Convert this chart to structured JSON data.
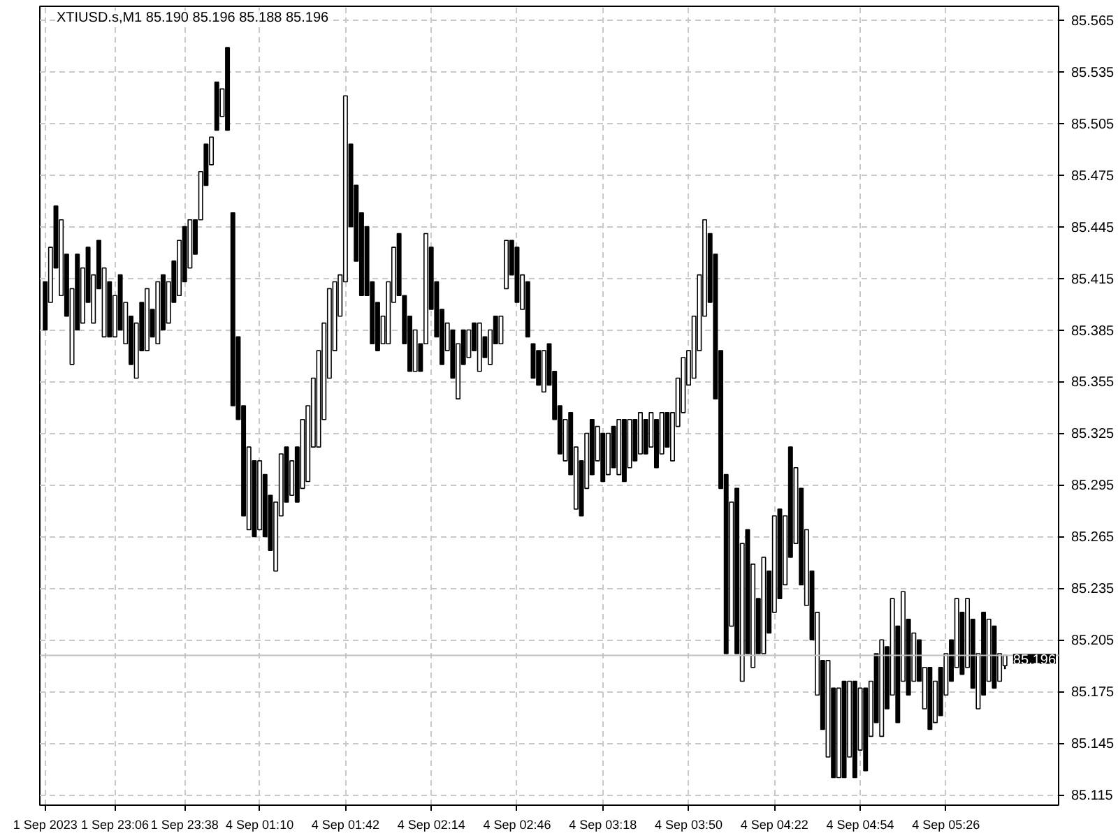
{
  "chart_data": {
    "type": "candlestick",
    "title": "XTIUSD.s,M1  85.190 85.196 85.188 85.196",
    "categories": [
      "1 Sep 2023",
      null,
      null,
      null,
      null,
      null,
      null,
      null,
      null,
      null,
      null,
      null,
      null,
      "1 Sep 23:06",
      null,
      null,
      null,
      null,
      null,
      null,
      null,
      null,
      null,
      null,
      null,
      null,
      "1 Sep 23:38",
      null,
      null,
      null,
      null,
      null,
      null,
      null,
      null,
      null,
      null,
      null,
      null,
      null,
      "4 Sep 01:10",
      null,
      null,
      null,
      null,
      null,
      null,
      null,
      null,
      null,
      null,
      null,
      null,
      null,
      null,
      null,
      "4 Sep 01:42",
      null,
      null,
      null,
      null,
      null,
      null,
      null,
      null,
      null,
      null,
      null,
      null,
      null,
      null,
      null,
      "4 Sep 02:14",
      null,
      null,
      null,
      null,
      null,
      null,
      null,
      null,
      null,
      null,
      null,
      null,
      null,
      null,
      null,
      "4 Sep 02:46",
      null,
      null,
      null,
      null,
      null,
      null,
      null,
      null,
      null,
      null,
      null,
      null,
      null,
      null,
      null,
      "4 Sep 03:18",
      null,
      null,
      null,
      null,
      null,
      null,
      null,
      null,
      null,
      null,
      null,
      null,
      null,
      null,
      null,
      "4 Sep 03:50",
      null,
      null,
      null,
      null,
      null,
      null,
      null,
      null,
      null,
      null,
      null,
      null,
      null,
      null,
      null,
      "4 Sep 04:22",
      null,
      null,
      null,
      null,
      null,
      null,
      null,
      null,
      null,
      null,
      null,
      null,
      null,
      null,
      null,
      "4 Sep 04:54",
      null,
      null,
      null,
      null,
      null,
      null,
      null,
      null,
      null,
      null,
      null,
      null,
      null,
      null,
      null,
      "4 Sep 05:26",
      null,
      null,
      null,
      null,
      null,
      null,
      null,
      null,
      null,
      null,
      null
    ],
    "ohlc": [
      [
        85.413,
        85.413,
        85.385,
        85.385
      ],
      [
        85.401,
        85.433,
        85.401,
        85.433
      ],
      [
        85.457,
        85.457,
        85.421,
        85.421
      ],
      [
        85.405,
        85.449,
        85.405,
        85.449
      ],
      [
        85.429,
        85.429,
        85.393,
        85.393
      ],
      [
        85.365,
        85.409,
        85.365,
        85.409
      ],
      [
        85.429,
        85.429,
        85.385,
        85.385
      ],
      [
        85.389,
        85.421,
        85.389,
        85.421
      ],
      [
        85.433,
        85.433,
        85.401,
        85.401
      ],
      [
        85.389,
        85.417,
        85.389,
        85.417
      ],
      [
        85.437,
        85.437,
        85.409,
        85.409
      ],
      [
        85.381,
        85.421,
        85.381,
        85.421
      ],
      [
        85.413,
        85.413,
        85.381,
        85.381
      ],
      [
        85.381,
        85.405,
        85.381,
        85.405
      ],
      [
        85.417,
        85.417,
        85.385,
        85.385
      ],
      [
        85.377,
        85.401,
        85.377,
        85.401
      ],
      [
        85.393,
        85.393,
        85.365,
        85.365
      ],
      [
        85.357,
        85.389,
        85.357,
        85.389
      ],
      [
        85.401,
        85.401,
        85.373,
        85.373
      ],
      [
        85.373,
        85.409,
        85.373,
        85.409
      ],
      [
        85.397,
        85.397,
        85.381,
        85.381
      ],
      [
        85.377,
        85.413,
        85.377,
        85.413
      ],
      [
        85.417,
        85.417,
        85.385,
        85.385
      ],
      [
        85.389,
        85.413,
        85.389,
        85.413
      ],
      [
        85.425,
        85.425,
        85.401,
        85.401
      ],
      [
        85.405,
        85.437,
        85.405,
        85.437
      ],
      [
        85.445,
        85.445,
        85.413,
        85.413
      ],
      [
        85.421,
        85.449,
        85.421,
        85.449
      ],
      [
        85.449,
        85.449,
        85.429,
        85.429
      ],
      [
        85.449,
        85.477,
        85.449,
        85.477
      ],
      [
        85.493,
        85.493,
        85.469,
        85.469
      ],
      [
        85.481,
        85.497,
        85.481,
        85.497
      ],
      [
        85.529,
        85.529,
        85.501,
        85.501
      ],
      [
        85.509,
        85.525,
        85.509,
        85.525
      ],
      [
        85.549,
        85.549,
        85.501,
        85.501
      ],
      [
        85.453,
        85.453,
        85.341,
        85.341
      ],
      [
        85.381,
        85.381,
        85.333,
        85.333
      ],
      [
        85.341,
        85.341,
        85.277,
        85.277
      ],
      [
        85.269,
        85.317,
        85.269,
        85.317
      ],
      [
        85.309,
        85.309,
        85.265,
        85.265
      ],
      [
        85.269,
        85.309,
        85.269,
        85.309
      ],
      [
        85.301,
        85.301,
        85.265,
        85.265
      ],
      [
        85.289,
        85.289,
        85.257,
        85.257
      ],
      [
        85.245,
        85.285,
        85.245,
        85.285
      ],
      [
        85.277,
        85.313,
        85.277,
        85.313
      ],
      [
        85.317,
        85.317,
        85.285,
        85.285
      ],
      [
        85.289,
        85.309,
        85.289,
        85.309
      ],
      [
        85.317,
        85.317,
        85.285,
        85.285
      ],
      [
        85.293,
        85.333,
        85.293,
        85.333
      ],
      [
        85.297,
        85.341,
        85.297,
        85.341
      ],
      [
        85.317,
        85.357,
        85.317,
        85.357
      ],
      [
        85.317,
        85.373,
        85.317,
        85.373
      ],
      [
        85.333,
        85.389,
        85.333,
        85.389
      ],
      [
        85.357,
        85.409,
        85.357,
        85.409
      ],
      [
        85.373,
        85.413,
        85.373,
        85.413
      ],
      [
        85.393,
        85.417,
        85.393,
        85.417
      ],
      [
        85.413,
        85.521,
        85.413,
        85.521
      ],
      [
        85.493,
        85.493,
        85.445,
        85.445
      ],
      [
        85.469,
        85.469,
        85.425,
        85.425
      ],
      [
        85.453,
        85.453,
        85.405,
        85.405
      ],
      [
        85.445,
        85.445,
        85.405,
        85.405
      ],
      [
        85.413,
        85.413,
        85.377,
        85.377
      ],
      [
        85.401,
        85.401,
        85.373,
        85.373
      ],
      [
        85.377,
        85.393,
        85.377,
        85.393
      ],
      [
        85.377,
        85.413,
        85.377,
        85.413
      ],
      [
        85.401,
        85.433,
        85.401,
        85.433
      ],
      [
        85.441,
        85.441,
        85.405,
        85.405
      ],
      [
        85.405,
        85.405,
        85.377,
        85.377
      ],
      [
        85.393,
        85.393,
        85.361,
        85.361
      ],
      [
        85.361,
        85.385,
        85.361,
        85.385
      ],
      [
        85.377,
        85.377,
        85.361,
        85.361
      ],
      [
        85.377,
        85.441,
        85.377,
        85.441
      ],
      [
        85.433,
        85.433,
        85.397,
        85.397
      ],
      [
        85.413,
        85.413,
        85.381,
        85.381
      ],
      [
        85.397,
        85.397,
        85.365,
        85.365
      ],
      [
        85.373,
        85.389,
        85.373,
        85.389
      ],
      [
        85.385,
        85.385,
        85.357,
        85.357
      ],
      [
        85.345,
        85.377,
        85.345,
        85.377
      ],
      [
        85.385,
        85.385,
        85.365,
        85.365
      ],
      [
        85.369,
        85.385,
        85.369,
        85.385
      ],
      [
        85.389,
        85.389,
        85.373,
        85.373
      ],
      [
        85.361,
        85.389,
        85.361,
        85.389
      ],
      [
        85.381,
        85.381,
        85.369,
        85.369
      ],
      [
        85.365,
        85.385,
        85.365,
        85.385
      ],
      [
        85.393,
        85.393,
        85.377,
        85.377
      ],
      [
        85.377,
        85.393,
        85.377,
        85.393
      ],
      [
        85.409,
        85.437,
        85.409,
        85.437
      ],
      [
        85.437,
        85.437,
        85.417,
        85.417
      ],
      [
        85.433,
        85.433,
        85.401,
        85.401
      ],
      [
        85.397,
        85.417,
        85.397,
        85.417
      ],
      [
        85.413,
        85.413,
        85.381,
        85.381
      ],
      [
        85.377,
        85.377,
        85.357,
        85.357
      ],
      [
        85.373,
        85.373,
        85.353,
        85.353
      ],
      [
        85.349,
        85.373,
        85.349,
        85.373
      ],
      [
        85.377,
        85.377,
        85.353,
        85.353
      ],
      [
        85.361,
        85.361,
        85.333,
        85.333
      ],
      [
        85.341,
        85.341,
        85.313,
        85.313
      ],
      [
        85.309,
        85.333,
        85.309,
        85.333
      ],
      [
        85.337,
        85.337,
        85.301,
        85.301
      ],
      [
        85.281,
        85.317,
        85.281,
        85.317
      ],
      [
        85.309,
        85.309,
        85.277,
        85.277
      ],
      [
        85.293,
        85.325,
        85.293,
        85.325
      ],
      [
        85.333,
        85.333,
        85.301,
        85.301
      ],
      [
        85.309,
        85.329,
        85.309,
        85.329
      ],
      [
        85.325,
        85.325,
        85.297,
        85.297
      ],
      [
        85.301,
        85.325,
        85.301,
        85.325
      ],
      [
        85.329,
        85.329,
        85.305,
        85.305
      ],
      [
        85.301,
        85.333,
        85.301,
        85.333
      ],
      [
        85.333,
        85.333,
        85.297,
        85.297
      ],
      [
        85.305,
        85.333,
        85.305,
        85.333
      ],
      [
        85.333,
        85.333,
        85.309,
        85.309
      ],
      [
        85.313,
        85.337,
        85.313,
        85.337
      ],
      [
        85.333,
        85.333,
        85.313,
        85.313
      ],
      [
        85.317,
        85.337,
        85.317,
        85.337
      ],
      [
        85.333,
        85.333,
        85.305,
        85.305
      ],
      [
        85.313,
        85.337,
        85.313,
        85.337
      ],
      [
        85.337,
        85.337,
        85.317,
        85.317
      ],
      [
        85.309,
        85.337,
        85.309,
        85.337
      ],
      [
        85.329,
        85.357,
        85.329,
        85.357
      ],
      [
        85.337,
        85.369,
        85.337,
        85.369
      ],
      [
        85.353,
        85.373,
        85.353,
        85.373
      ],
      [
        85.357,
        85.393,
        85.357,
        85.393
      ],
      [
        85.373,
        85.417,
        85.373,
        85.417
      ],
      [
        85.393,
        85.449,
        85.393,
        85.449
      ],
      [
        85.441,
        85.441,
        85.401,
        85.401
      ],
      [
        85.429,
        85.429,
        85.345,
        85.345
      ],
      [
        85.373,
        85.373,
        85.293,
        85.293
      ],
      [
        85.301,
        85.301,
        85.197,
        85.197
      ],
      [
        85.213,
        85.285,
        85.213,
        85.285
      ],
      [
        85.293,
        85.293,
        85.197,
        85.197
      ],
      [
        85.181,
        85.261,
        85.181,
        85.261
      ],
      [
        85.269,
        85.269,
        85.197,
        85.197
      ],
      [
        85.189,
        85.249,
        85.189,
        85.249
      ],
      [
        85.229,
        85.229,
        85.197,
        85.197
      ],
      [
        85.197,
        85.253,
        85.197,
        85.253
      ],
      [
        85.245,
        85.245,
        85.209,
        85.209
      ],
      [
        85.221,
        85.277,
        85.221,
        85.277
      ],
      [
        85.281,
        85.281,
        85.229,
        85.229
      ],
      [
        85.237,
        85.277,
        85.237,
        85.277
      ],
      [
        85.317,
        85.317,
        85.253,
        85.253
      ],
      [
        85.261,
        85.305,
        85.261,
        85.305
      ],
      [
        85.293,
        85.293,
        85.237,
        85.237
      ],
      [
        85.225,
        85.269,
        85.225,
        85.269
      ],
      [
        85.245,
        85.245,
        85.205,
        85.205
      ],
      [
        85.173,
        85.221,
        85.173,
        85.221
      ],
      [
        85.193,
        85.193,
        85.153,
        85.153
      ],
      [
        85.137,
        85.193,
        85.137,
        85.193
      ],
      [
        85.177,
        85.177,
        85.125,
        85.125
      ],
      [
        85.125,
        85.177,
        85.125,
        85.177
      ],
      [
        85.181,
        85.181,
        85.125,
        85.125
      ],
      [
        85.137,
        85.181,
        85.137,
        85.181
      ],
      [
        85.181,
        85.181,
        85.125,
        85.125
      ],
      [
        85.141,
        85.177,
        85.141,
        85.177
      ],
      [
        85.177,
        85.177,
        85.129,
        85.129
      ],
      [
        85.149,
        85.181,
        85.149,
        85.181
      ],
      [
        85.197,
        85.197,
        85.157,
        85.157
      ],
      [
        85.149,
        85.205,
        85.149,
        85.205
      ],
      [
        85.201,
        85.201,
        85.165,
        85.165
      ],
      [
        85.173,
        85.229,
        85.173,
        85.229
      ],
      [
        85.213,
        85.213,
        85.157,
        85.157
      ],
      [
        85.181,
        85.233,
        85.181,
        85.233
      ],
      [
        85.217,
        85.217,
        85.173,
        85.173
      ],
      [
        85.181,
        85.209,
        85.181,
        85.209
      ],
      [
        85.205,
        85.205,
        85.181,
        85.181
      ],
      [
        85.165,
        85.189,
        85.165,
        85.189
      ],
      [
        85.189,
        85.189,
        85.153,
        85.153
      ],
      [
        85.157,
        85.181,
        85.157,
        85.181
      ],
      [
        85.189,
        85.189,
        85.161,
        85.161
      ],
      [
        85.173,
        85.197,
        85.173,
        85.197
      ],
      [
        85.205,
        85.205,
        85.181,
        85.181
      ],
      [
        85.189,
        85.229,
        85.189,
        85.229
      ],
      [
        85.221,
        85.221,
        85.185,
        85.185
      ],
      [
        85.189,
        85.229,
        85.189,
        85.229
      ],
      [
        85.217,
        85.217,
        85.177,
        85.177
      ],
      [
        85.165,
        85.197,
        85.165,
        85.197
      ],
      [
        85.221,
        85.221,
        85.173,
        85.173
      ],
      [
        85.181,
        85.217,
        85.181,
        85.217
      ],
      [
        85.213,
        85.213,
        85.177,
        85.177
      ],
      [
        85.181,
        85.197,
        85.181,
        85.197
      ],
      [
        85.19,
        85.196,
        85.188,
        85.196
      ]
    ],
    "color": "#000000",
    "ylim": [
      85.109,
      85.573
    ],
    "yticks": [
      85.115,
      85.145,
      85.175,
      85.205,
      85.235,
      85.265,
      85.295,
      85.325,
      85.355,
      85.385,
      85.415,
      85.445,
      85.475,
      85.505,
      85.535,
      85.565
    ],
    "ref_lines": [
      {
        "axis": "y",
        "value": 85.196,
        "label": "85.196",
        "color": "#c0c0c0"
      }
    ],
    "grid": true
  }
}
